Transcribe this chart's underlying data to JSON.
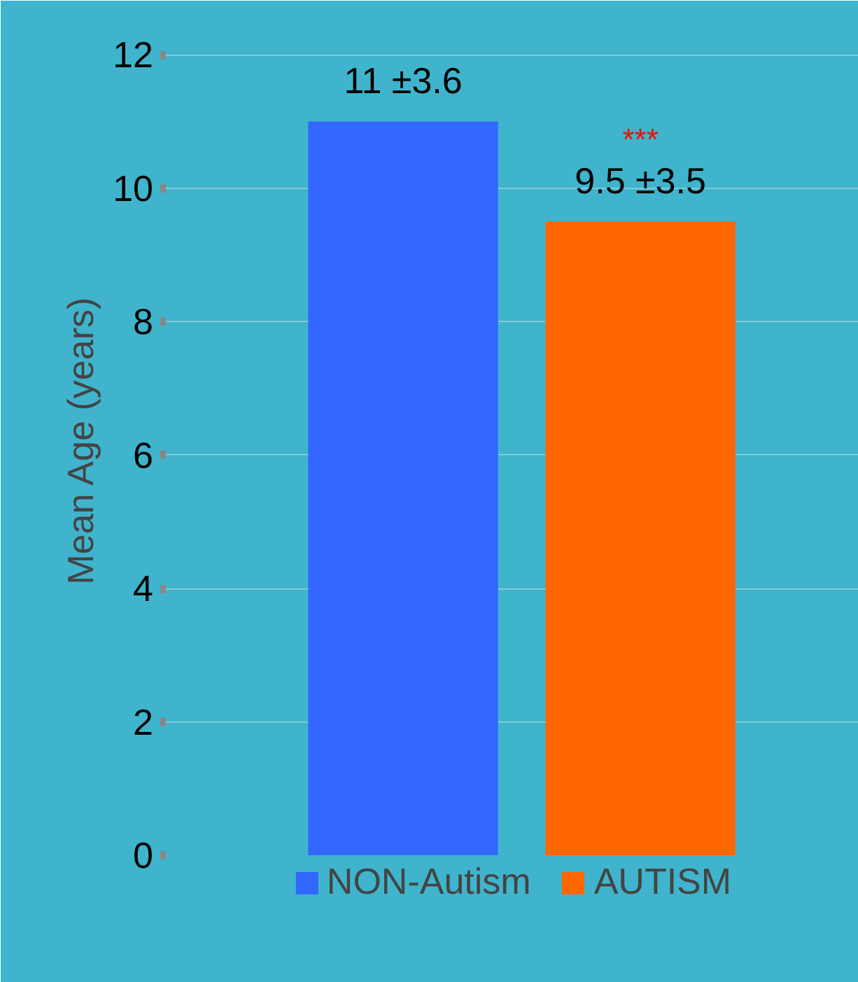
{
  "chart_data": {
    "type": "bar",
    "ylabel": "Mean  Age (years)",
    "categories": [
      null,
      null
    ],
    "series": [
      {
        "name": "NON-Autism",
        "color": "#3366ff",
        "values": [
          11,
          null
        ],
        "value_labels": [
          "11 ±3.6",
          null
        ]
      },
      {
        "name": "AUTISM",
        "color": "#ff6600",
        "values": [
          null,
          9.5
        ],
        "value_labels": [
          null,
          "9.5 ±3.5"
        ]
      }
    ],
    "ylim": [
      0,
      12.6
    ],
    "yticks": [
      0,
      2,
      4,
      6,
      8,
      10,
      12
    ],
    "grid": "y",
    "legend": "bottom",
    "annotations": [
      "***"
    ]
  }
}
